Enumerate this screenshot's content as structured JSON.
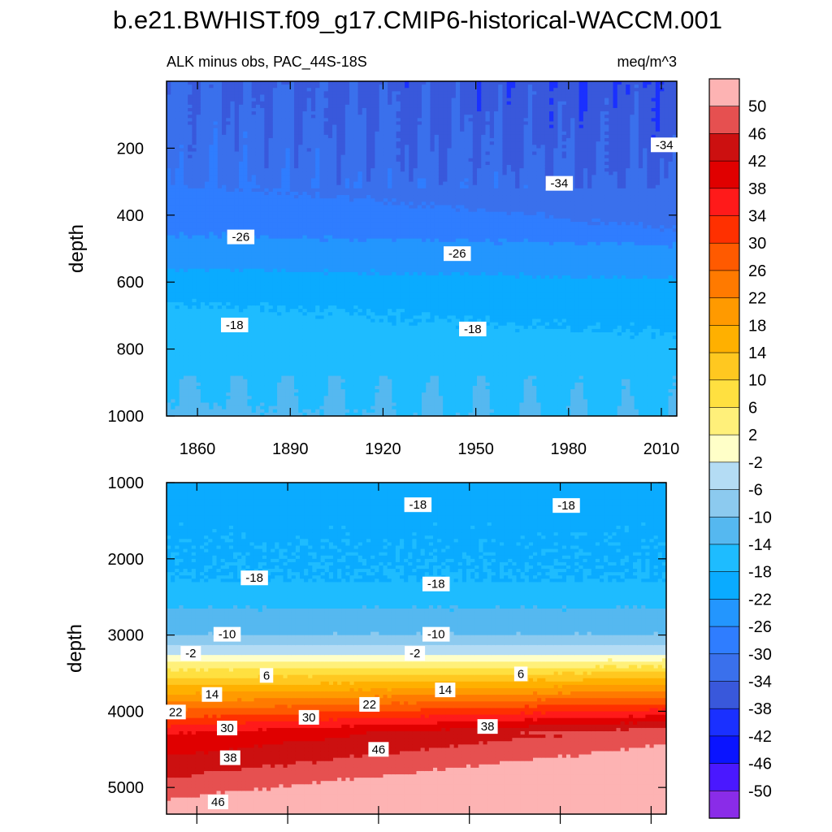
{
  "title": "b.e21.BWHIST.f09_g17.CMIP6-historical-WACCM.001",
  "subtitle_left": "ALK minus obs, PAC_44S-18S",
  "subtitle_right": "meq/m^3",
  "chart_data": {
    "type": "contour",
    "variable": "ALK minus obs",
    "region": "PAC_44S-18S",
    "units": "meq/m^3",
    "xlim": [
      1850,
      2015
    ],
    "x_ticks": [
      1860,
      1890,
      1920,
      1950,
      1980,
      2010
    ],
    "panels": [
      {
        "name": "upper",
        "ylabel": "depth",
        "ylim": [
          0,
          1000
        ],
        "y_ticks": [
          200,
          400,
          600,
          800,
          1000
        ],
        "contour_labels": [
          {
            "text": "-34",
            "x": 2011,
            "depth": 190
          },
          {
            "text": "-34",
            "x": 1977,
            "depth": 305
          },
          {
            "text": "-26",
            "x": 1874,
            "depth": 465
          },
          {
            "text": "-26",
            "x": 1944,
            "depth": 515
          },
          {
            "text": "-18",
            "x": 1872,
            "depth": 728
          },
          {
            "text": "-18",
            "x": 1949,
            "depth": 740
          }
        ]
      },
      {
        "name": "lower",
        "ylabel": "depth",
        "ylim": [
          1000,
          5350
        ],
        "y_ticks": [
          1000,
          2000,
          3000,
          4000,
          5000
        ],
        "contour_labels": [
          {
            "text": "-18",
            "x": 1933,
            "depth": 1290
          },
          {
            "text": "-18",
            "x": 1982,
            "depth": 1300
          },
          {
            "text": "-18",
            "x": 1879,
            "depth": 2250
          },
          {
            "text": "-18",
            "x": 1939,
            "depth": 2330
          },
          {
            "text": "-10",
            "x": 1870,
            "depth": 2990
          },
          {
            "text": "-10",
            "x": 1939,
            "depth": 2990
          },
          {
            "text": "-2",
            "x": 1858,
            "depth": 3240
          },
          {
            "text": "-2",
            "x": 1932,
            "depth": 3240
          },
          {
            "text": "6",
            "x": 1883,
            "depth": 3530
          },
          {
            "text": "6",
            "x": 1967,
            "depth": 3510
          },
          {
            "text": "14",
            "x": 1865,
            "depth": 3780
          },
          {
            "text": "14",
            "x": 1942,
            "depth": 3720
          },
          {
            "text": "22",
            "x": 1853,
            "depth": 4010
          },
          {
            "text": "22",
            "x": 1917,
            "depth": 3910
          },
          {
            "text": "30",
            "x": 1870,
            "depth": 4220
          },
          {
            "text": "30",
            "x": 1897,
            "depth": 4080
          },
          {
            "text": "38",
            "x": 1871,
            "depth": 4610
          },
          {
            "text": "38",
            "x": 1956,
            "depth": 4200
          },
          {
            "text": "46",
            "x": 1867,
            "depth": 5190
          },
          {
            "text": "46",
            "x": 1920,
            "depth": 4500
          }
        ]
      }
    ],
    "colorbar": {
      "levels": [
        50,
        46,
        42,
        38,
        34,
        30,
        26,
        22,
        18,
        14,
        10,
        6,
        2,
        -2,
        -6,
        -10,
        -14,
        -18,
        -22,
        -26,
        -30,
        -34,
        -38,
        -42,
        -46,
        -50
      ],
      "colors": [
        "#fdb3b3",
        "#e65050",
        "#cc1010",
        "#e00000",
        "#ff1a1a",
        "#ff3000",
        "#ff5a00",
        "#ff7a00",
        "#ff9a00",
        "#ffb000",
        "#ffc820",
        "#ffe040",
        "#fff07a",
        "#ffffc8",
        "#b4dcf4",
        "#8ccaef",
        "#55b8f0",
        "#1ebcff",
        "#0aabff",
        "#2396fe",
        "#2f7dff",
        "#3a70ec",
        "#3958db",
        "#1a30ff",
        "#0a14ff",
        "#4a18ff",
        "#8a2ce8"
      ]
    }
  }
}
